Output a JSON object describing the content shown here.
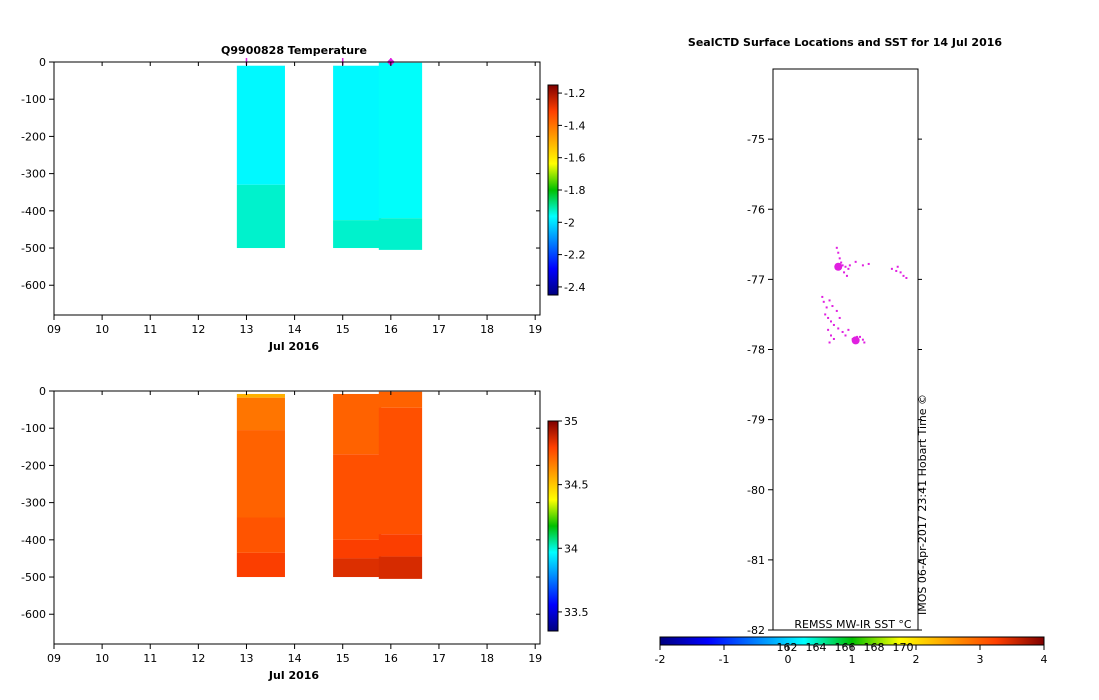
{
  "chart_data": [
    {
      "type": "heatmap",
      "title": "Q9900828  Temperature",
      "xlabel": "Jul 2016",
      "x_ticks": [
        "09",
        "10",
        "11",
        "12",
        "13",
        "14",
        "15",
        "16",
        "17",
        "18",
        "19"
      ],
      "xlim": [
        9,
        19.1
      ],
      "y_ticks": [
        0,
        -100,
        -200,
        -300,
        -400,
        -500,
        -600
      ],
      "ylim": [
        -680,
        0
      ],
      "profiles": [
        {
          "x_start": 12.8,
          "x_end": 13.8,
          "segments": [
            {
              "top": -10,
              "bottom": -330,
              "value": -1.97
            },
            {
              "top": -330,
              "bottom": -500,
              "value": -1.93
            }
          ]
        },
        {
          "x_start": 14.8,
          "x_end": 15.8,
          "segments": [
            {
              "top": -10,
              "bottom": -425,
              "value": -1.97
            },
            {
              "top": -425,
              "bottom": -500,
              "value": -1.93
            }
          ]
        },
        {
          "x_start": 15.75,
          "x_end": 16.65,
          "segments": [
            {
              "top": -2,
              "bottom": -420,
              "value": -1.96
            },
            {
              "top": -420,
              "bottom": -505,
              "value": -1.93
            }
          ]
        }
      ],
      "markers_x": [
        13.0,
        15.0,
        16.0
      ],
      "colorbar": {
        "ticks": [
          -1.2,
          -1.4,
          -1.6,
          -1.8,
          -2,
          -2.2,
          -2.4
        ],
        "tick_labels": [
          "-1.2",
          "-1.4",
          "-1.6",
          "-1.8",
          "-2",
          "-2.2",
          "-2.4"
        ],
        "range": [
          -2.45,
          -1.15
        ]
      }
    },
    {
      "type": "heatmap",
      "title": "",
      "xlabel": "Jul 2016",
      "x_ticks": [
        "09",
        "10",
        "11",
        "12",
        "13",
        "14",
        "15",
        "16",
        "17",
        "18",
        "19"
      ],
      "xlim": [
        9,
        19.1
      ],
      "y_ticks": [
        0,
        -100,
        -200,
        -300,
        -400,
        -500,
        -600
      ],
      "ylim": [
        -680,
        0
      ],
      "profiles": [
        {
          "x_start": 12.8,
          "x_end": 13.8,
          "segments": [
            {
              "top": -8,
              "bottom": -18,
              "value": 34.55
            },
            {
              "top": -18,
              "bottom": -105,
              "value": 34.68
            },
            {
              "top": -105,
              "bottom": -340,
              "value": 34.72
            },
            {
              "top": -340,
              "bottom": -435,
              "value": 34.75
            },
            {
              "top": -435,
              "bottom": -500,
              "value": 34.8
            }
          ]
        },
        {
          "x_start": 14.8,
          "x_end": 15.8,
          "segments": [
            {
              "top": -8,
              "bottom": -170,
              "value": 34.72
            },
            {
              "top": -170,
              "bottom": -400,
              "value": 34.76
            },
            {
              "top": -400,
              "bottom": -450,
              "value": 34.8
            },
            {
              "top": -450,
              "bottom": -500,
              "value": 34.85
            }
          ]
        },
        {
          "x_start": 15.75,
          "x_end": 16.65,
          "segments": [
            {
              "top": -2,
              "bottom": -45,
              "value": 34.72
            },
            {
              "top": -45,
              "bottom": -385,
              "value": 34.76
            },
            {
              "top": -385,
              "bottom": -445,
              "value": 34.8
            },
            {
              "top": -445,
              "bottom": -505,
              "value": 34.86
            }
          ]
        }
      ],
      "colorbar": {
        "ticks": [
          35,
          34.5,
          34,
          33.5
        ],
        "tick_labels": [
          "35",
          "34.5",
          "34",
          "33.5"
        ],
        "range": [
          33.35,
          35.0
        ]
      }
    },
    {
      "type": "scatter",
      "title": "SealCTD Surface Locations and SST for 14 Jul 2016",
      "y_ticks": [
        -75,
        -76,
        -77,
        -78,
        -79,
        -80,
        -81,
        -82
      ],
      "ylim": [
        -82,
        -74
      ],
      "xlim": [
        0,
        1
      ],
      "points": [
        [
          0.44,
          -76.55
        ],
        [
          0.45,
          -76.62
        ],
        [
          0.46,
          -76.7
        ],
        [
          0.47,
          -76.76
        ],
        [
          0.48,
          -76.8
        ],
        [
          0.5,
          -76.82
        ],
        [
          0.52,
          -76.85
        ],
        [
          0.49,
          -76.9
        ],
        [
          0.51,
          -76.95
        ],
        [
          0.53,
          -76.8
        ],
        [
          0.57,
          -76.75
        ],
        [
          0.62,
          -76.8
        ],
        [
          0.66,
          -76.78
        ],
        [
          0.82,
          -76.85
        ],
        [
          0.85,
          -76.88
        ],
        [
          0.88,
          -76.9
        ],
        [
          0.9,
          -76.95
        ],
        [
          0.86,
          -76.82
        ],
        [
          0.92,
          -76.98
        ],
        [
          0.34,
          -77.25
        ],
        [
          0.35,
          -77.32
        ],
        [
          0.37,
          -77.4
        ],
        [
          0.36,
          -77.5
        ],
        [
          0.38,
          -77.55
        ],
        [
          0.4,
          -77.6
        ],
        [
          0.42,
          -77.65
        ],
        [
          0.45,
          -77.7
        ],
        [
          0.48,
          -77.75
        ],
        [
          0.5,
          -77.8
        ],
        [
          0.52,
          -77.72
        ],
        [
          0.4,
          -77.8
        ],
        [
          0.42,
          -77.85
        ],
        [
          0.38,
          -77.72
        ],
        [
          0.39,
          -77.9
        ],
        [
          0.55,
          -77.85
        ],
        [
          0.58,
          -77.88
        ],
        [
          0.6,
          -77.82
        ],
        [
          0.63,
          -77.9
        ],
        [
          0.44,
          -77.45
        ],
        [
          0.46,
          -77.55
        ],
        [
          0.41,
          -77.38
        ],
        [
          0.39,
          -77.3
        ],
        [
          0.58,
          -77.82
        ],
        [
          0.62,
          -77.86
        ]
      ],
      "highlight_points": [
        [
          0.45,
          -76.82
        ],
        [
          0.57,
          -77.87
        ]
      ],
      "colorbar": {
        "label": "REMSS MW-IR SST °C",
        "range": [
          -2,
          4
        ],
        "ticks": [
          "-2",
          "-1",
          "0",
          "1",
          "2",
          "3",
          "4"
        ]
      },
      "inner_ticks": [
        "162",
        "164",
        "166",
        "168",
        "170"
      ],
      "credit": "IMOS 06-Apr-2017 23:41 Hobart Time ©"
    }
  ]
}
